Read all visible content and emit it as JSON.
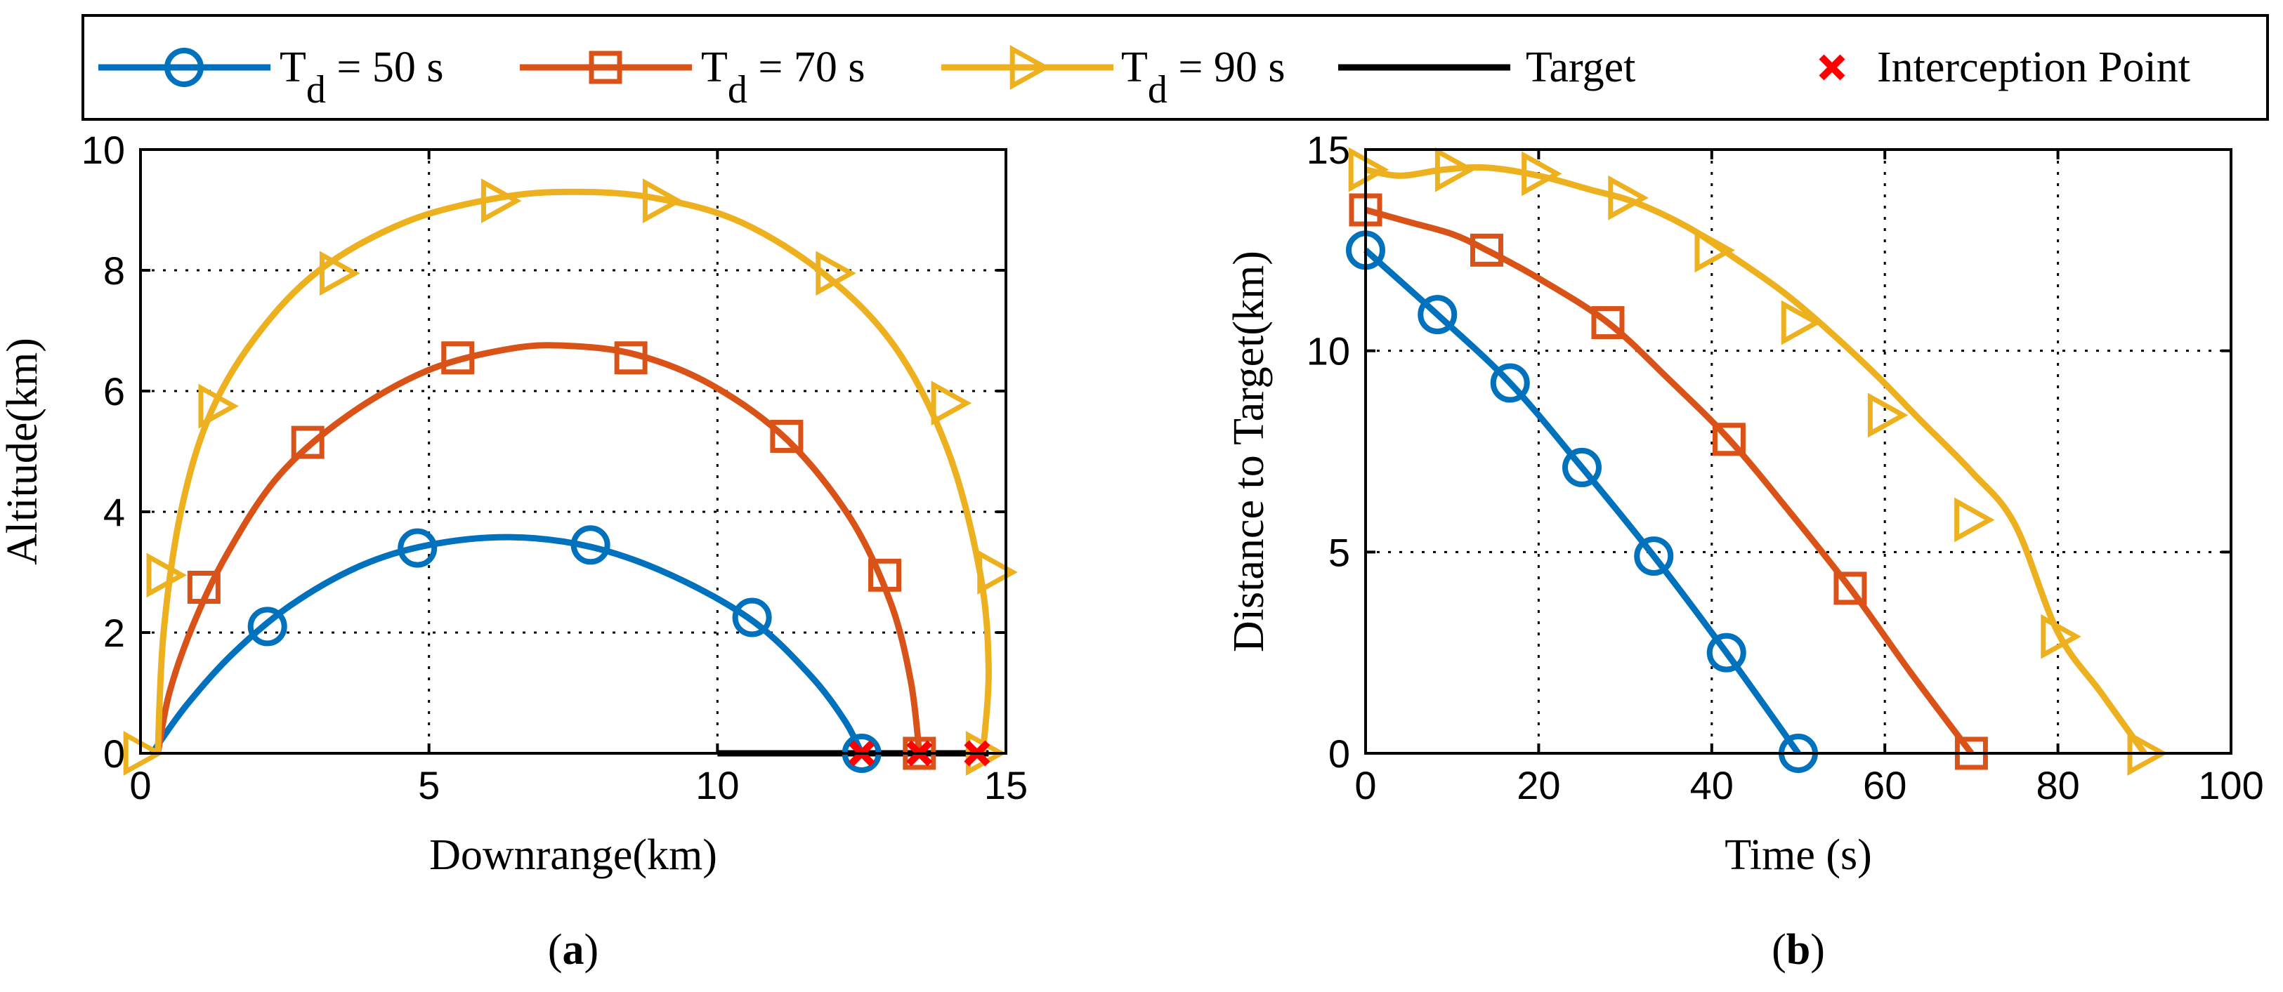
{
  "legend": {
    "entries": [
      {
        "main": "T",
        "sub": "d",
        "rest": " = 50 s",
        "color": "#0072BD",
        "marker": "circle"
      },
      {
        "main": "T",
        "sub": "d",
        "rest": " = 70 s",
        "color": "#D95319",
        "marker": "square"
      },
      {
        "main": "T",
        "sub": "d",
        "rest": " = 90 s",
        "color": "#EDB120",
        "marker": "triangle"
      },
      {
        "main": "Target",
        "sub": "",
        "rest": "",
        "color": "#000000",
        "marker": "none"
      },
      {
        "main": "Interception Point",
        "sub": "",
        "rest": "",
        "color": "#FF0000",
        "marker": "x"
      }
    ]
  },
  "chart_data": [
    {
      "type": "line",
      "panel_label": {
        "open": "(",
        "letter": "a",
        "close": ")"
      },
      "xlabel": "Downrange(km)",
      "ylabel": "Altitude(km)",
      "xlim": [
        0,
        15
      ],
      "ylim": [
        0,
        10
      ],
      "xticks": [
        0,
        5,
        10,
        15
      ],
      "yticks": [
        0,
        2,
        4,
        6,
        8,
        10
      ],
      "grid": true,
      "series": [
        {
          "name": "T_d = 50 s",
          "color": "#0072BD",
          "marker": "circle",
          "x": [
            0.2,
            0.8,
            1.6,
            2.6,
            3.8,
            5.0,
            6.4,
            7.8,
            9.2,
            10.6,
            11.6,
            12.2,
            12.5
          ],
          "y": [
            0.0,
            0.8,
            1.65,
            2.45,
            3.1,
            3.45,
            3.58,
            3.42,
            2.95,
            2.2,
            1.3,
            0.55,
            0.0
          ],
          "markers": {
            "x": [
              2.2,
              4.8,
              7.8,
              10.6,
              12.5
            ],
            "y": [
              2.1,
              3.4,
              3.45,
              2.25,
              0.0
            ]
          }
        },
        {
          "name": "T_d = 70 s",
          "color": "#D95319",
          "marker": "square",
          "x": [
            0.3,
            0.5,
            0.9,
            1.5,
            2.4,
            3.6,
            5.0,
            6.4,
            7.4,
            8.6,
            9.9,
            11.2,
            12.3,
            13.0,
            13.35,
            13.5
          ],
          "y": [
            0.0,
            1.0,
            2.1,
            3.3,
            4.6,
            5.6,
            6.35,
            6.7,
            6.75,
            6.6,
            6.1,
            5.2,
            3.9,
            2.5,
            1.2,
            0.0
          ],
          "markers": {
            "x": [
              1.1,
              2.9,
              5.5,
              8.5,
              11.2,
              12.9,
              13.5
            ],
            "y": [
              2.75,
              5.15,
              6.55,
              6.55,
              5.25,
              2.95,
              0.0
            ]
          }
        },
        {
          "name": "T_d = 90 s",
          "color": "#EDB120",
          "marker": "triangle",
          "x": [
            0.3,
            0.4,
            0.7,
            1.2,
            2.0,
            3.1,
            4.6,
            6.2,
            7.5,
            8.9,
            10.4,
            11.9,
            13.1,
            14.0,
            14.55,
            14.7,
            14.6
          ],
          "y": [
            0.0,
            2.0,
            4.0,
            5.6,
            6.9,
            8.0,
            8.8,
            9.2,
            9.3,
            9.2,
            8.8,
            7.9,
            6.7,
            5.0,
            3.0,
            1.4,
            0.0
          ],
          "markers": {
            "x": [
              0.0,
              0.4,
              1.3,
              3.4,
              6.2,
              9.0,
              12.0,
              14.0,
              14.8,
              14.6
            ],
            "y": [
              0.0,
              2.95,
              5.75,
              7.95,
              9.15,
              9.15,
              7.95,
              5.8,
              3.0,
              0.0
            ]
          }
        }
      ],
      "target": {
        "name": "Target",
        "color": "#000000",
        "x": [
          10.0,
          14.7
        ],
        "y": [
          0.0,
          0.0
        ]
      },
      "interception_points": {
        "name": "Interception Point",
        "color": "#FF0000",
        "x": [
          12.5,
          13.5,
          14.5
        ],
        "y": [
          0.0,
          0.0,
          0.0
        ]
      }
    },
    {
      "type": "line",
      "panel_label": {
        "open": "(",
        "letter": "b",
        "close": ")"
      },
      "xlabel": "Time (s)",
      "ylabel": "Distance to Target(km)",
      "xlim": [
        0,
        100
      ],
      "ylim": [
        0,
        15
      ],
      "xticks": [
        0,
        20,
        40,
        60,
        80,
        100
      ],
      "yticks": [
        0,
        5,
        10,
        15
      ],
      "grid": true,
      "series": [
        {
          "name": "T_d = 50 s",
          "color": "#0072BD",
          "marker": "circle",
          "x": [
            0,
            8.3,
            16.7,
            25.0,
            33.3,
            41.7,
            50.0
          ],
          "y": [
            12.5,
            10.9,
            9.2,
            7.1,
            4.9,
            2.5,
            0.0
          ],
          "markers": {
            "x": [
              0,
              8.3,
              16.7,
              25.0,
              33.3,
              41.7,
              50.0
            ],
            "y": [
              12.5,
              10.9,
              9.2,
              7.1,
              4.9,
              2.5,
              0.0
            ]
          }
        },
        {
          "name": "T_d = 70 s",
          "color": "#D95319",
          "marker": "square",
          "x": [
            0,
            5,
            10,
            14,
            20,
            28,
            35,
            42,
            49,
            56,
            63,
            70
          ],
          "y": [
            13.5,
            13.2,
            12.9,
            12.5,
            11.8,
            10.7,
            9.3,
            7.8,
            6.0,
            4.1,
            2.0,
            0.0
          ],
          "markers": {
            "x": [
              0,
              14,
              28,
              42,
              56,
              70
            ],
            "y": [
              13.5,
              12.5,
              10.7,
              7.8,
              4.1,
              0.0
            ]
          }
        },
        {
          "name": "T_d = 90 s",
          "color": "#EDB120",
          "marker": "triangle",
          "x": [
            0,
            4,
            9,
            14,
            20,
            26,
            31,
            37,
            42,
            48,
            53,
            59,
            64,
            70,
            75,
            80,
            85,
            90
          ],
          "y": [
            14.5,
            14.35,
            14.5,
            14.55,
            14.35,
            14.0,
            13.7,
            13.1,
            12.4,
            11.5,
            10.6,
            9.4,
            8.3,
            7.0,
            5.7,
            3.0,
            1.5,
            0.0
          ],
          "markers": {
            "x": [
              0,
              10,
              20,
              30,
              40,
              50,
              60,
              70,
              80,
              90
            ],
            "y": [
              14.5,
              14.5,
              14.4,
              13.8,
              12.5,
              10.7,
              8.4,
              5.8,
              2.9,
              0.0
            ]
          }
        }
      ]
    }
  ]
}
